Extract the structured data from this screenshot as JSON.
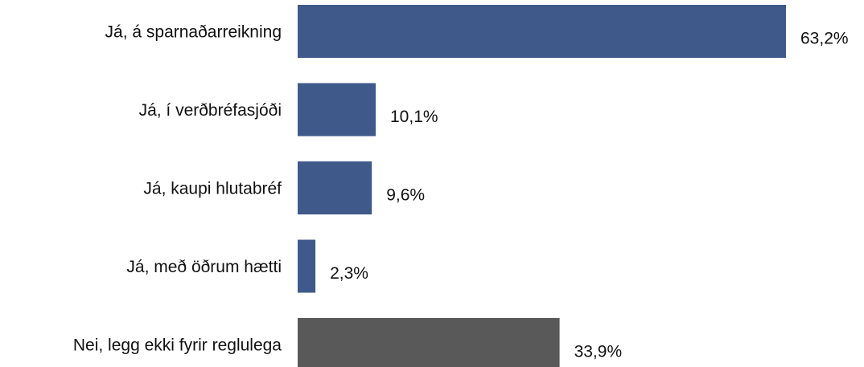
{
  "chart_data": {
    "type": "bar",
    "orientation": "horizontal",
    "categories": [
      "Já, á sparnaðarreikning",
      "Já, í verðbréfasjóði",
      "Já, kaupi hlutabréf",
      "Já, með öðrum hætti",
      "Nei, legg ekki fyrir reglulega"
    ],
    "values": [
      63.2,
      10.1,
      9.6,
      2.3,
      33.9
    ],
    "value_labels": [
      "63,2%",
      "10,1%",
      "9,6%",
      "2,3%",
      "33,9%"
    ],
    "bar_colors": [
      "#3f5a8a",
      "#3f5a8a",
      "#3f5a8a",
      "#3f5a8a",
      "#595959"
    ],
    "title": "",
    "xlabel": "",
    "ylabel": "",
    "xlim": [
      0,
      63.2
    ],
    "grid": false,
    "legend": "none"
  }
}
